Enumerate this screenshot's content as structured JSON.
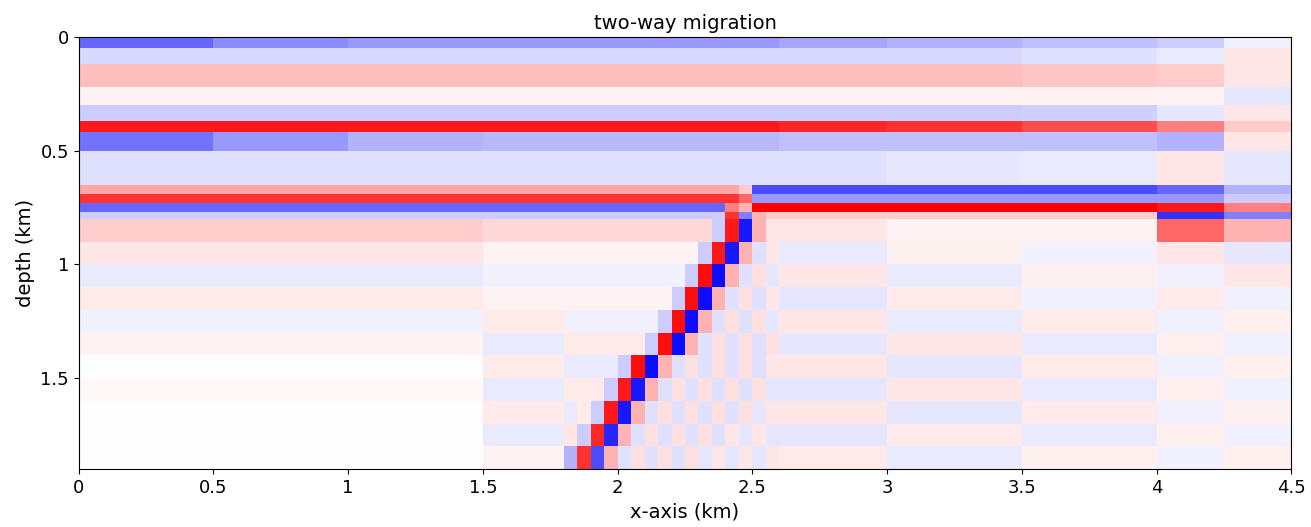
{
  "chart_data": {
    "type": "heatmap",
    "title": "two-way migration",
    "x_label": "x-axis (km)",
    "y_label": "depth (km)",
    "xlim": [
      0,
      4.5
    ],
    "ylim": [
      1.9,
      0
    ],
    "xticks": [
      0,
      0.5,
      1,
      1.5,
      2,
      2.5,
      3,
      3.5,
      4,
      4.5
    ],
    "yticks": [
      0,
      0.5,
      1,
      1.5
    ],
    "zlim": [
      -1,
      1
    ],
    "x_edges": [
      0,
      0.5,
      1.0,
      1.5,
      1.8,
      1.85,
      1.9,
      1.95,
      2.0,
      2.05,
      2.1,
      2.15,
      2.2,
      2.25,
      2.3,
      2.35,
      2.4,
      2.45,
      2.5,
      2.55,
      2.6,
      3.0,
      3.5,
      4.0,
      4.25,
      4.5
    ],
    "y_edges": [
      0,
      0.05,
      0.12,
      0.22,
      0.3,
      0.37,
      0.42,
      0.5,
      0.65,
      0.69,
      0.73,
      0.77,
      0.8,
      0.9,
      1.0,
      1.1,
      1.2,
      1.3,
      1.4,
      1.5,
      1.6,
      1.7,
      1.8,
      1.9
    ],
    "cells": [
      [
        -0.6,
        -0.45,
        -0.4,
        -0.4,
        -0.4,
        -0.4,
        -0.4,
        -0.4,
        -0.4,
        -0.4,
        -0.4,
        -0.4,
        -0.4,
        -0.4,
        -0.4,
        -0.4,
        -0.4,
        -0.4,
        -0.4,
        -0.4,
        -0.35,
        -0.3,
        -0.25,
        -0.2,
        -0.05
      ],
      [
        -0.15,
        -0.15,
        -0.15,
        -0.15,
        -0.15,
        -0.15,
        -0.15,
        -0.15,
        -0.15,
        -0.15,
        -0.15,
        -0.15,
        -0.15,
        -0.15,
        -0.15,
        -0.15,
        -0.15,
        -0.15,
        -0.15,
        -0.15,
        -0.15,
        -0.15,
        -0.12,
        -0.08,
        0.1
      ],
      [
        0.25,
        0.25,
        0.25,
        0.25,
        0.25,
        0.25,
        0.25,
        0.25,
        0.25,
        0.25,
        0.25,
        0.25,
        0.25,
        0.25,
        0.25,
        0.25,
        0.25,
        0.25,
        0.25,
        0.25,
        0.25,
        0.25,
        0.22,
        0.2,
        0.1
      ],
      [
        0.05,
        0.05,
        0.05,
        0.05,
        0.05,
        0.05,
        0.05,
        0.05,
        0.05,
        0.05,
        0.05,
        0.05,
        0.05,
        0.05,
        0.05,
        0.05,
        0.05,
        0.05,
        0.05,
        0.05,
        0.05,
        0.05,
        0.05,
        0.05,
        -0.1
      ],
      [
        -0.2,
        -0.2,
        -0.2,
        -0.2,
        -0.2,
        -0.2,
        -0.2,
        -0.2,
        -0.2,
        -0.2,
        -0.2,
        -0.2,
        -0.2,
        -0.2,
        -0.2,
        -0.2,
        -0.2,
        -0.2,
        -0.2,
        -0.2,
        -0.2,
        -0.2,
        -0.18,
        -0.1,
        0.1
      ],
      [
        0.9,
        0.9,
        0.9,
        0.9,
        0.9,
        0.9,
        0.9,
        0.9,
        0.9,
        0.9,
        0.9,
        0.9,
        0.9,
        0.9,
        0.9,
        0.9,
        0.9,
        0.9,
        0.9,
        0.9,
        0.85,
        0.8,
        0.7,
        0.5,
        0.2
      ],
      [
        -0.55,
        -0.4,
        -0.3,
        -0.28,
        -0.28,
        -0.28,
        -0.28,
        -0.28,
        -0.28,
        -0.28,
        -0.28,
        -0.28,
        -0.28,
        -0.28,
        -0.28,
        -0.28,
        -0.28,
        -0.28,
        -0.28,
        -0.28,
        -0.25,
        -0.25,
        -0.25,
        -0.3,
        0.1
      ],
      [
        -0.12,
        -0.12,
        -0.12,
        -0.12,
        -0.12,
        -0.12,
        -0.12,
        -0.12,
        -0.12,
        -0.12,
        -0.12,
        -0.12,
        -0.12,
        -0.12,
        -0.12,
        -0.12,
        -0.12,
        -0.12,
        -0.12,
        -0.12,
        -0.12,
        -0.1,
        -0.08,
        0.1,
        -0.1
      ],
      [
        0.35,
        0.35,
        0.35,
        0.35,
        0.35,
        0.35,
        0.35,
        0.35,
        0.35,
        0.35,
        0.35,
        0.35,
        0.35,
        0.35,
        0.35,
        0.35,
        0.35,
        0.2,
        -0.7,
        -0.7,
        -0.7,
        -0.7,
        -0.7,
        -0.6,
        -0.3
      ],
      [
        0.8,
        0.8,
        0.8,
        0.8,
        0.8,
        0.8,
        0.8,
        0.8,
        0.8,
        0.8,
        0.8,
        0.8,
        0.8,
        0.8,
        0.8,
        0.8,
        0.8,
        0.6,
        -0.4,
        -0.4,
        -0.4,
        -0.4,
        -0.4,
        -0.4,
        -0.2
      ],
      [
        -0.6,
        -0.6,
        -0.6,
        -0.6,
        -0.6,
        -0.6,
        -0.6,
        -0.6,
        -0.6,
        -0.6,
        -0.6,
        -0.6,
        -0.6,
        -0.6,
        -0.6,
        -0.6,
        0.5,
        0.3,
        1.0,
        1.0,
        1.0,
        1.0,
        1.0,
        0.9,
        0.5
      ],
      [
        -0.2,
        -0.2,
        -0.2,
        -0.2,
        -0.2,
        -0.2,
        -0.2,
        -0.2,
        -0.2,
        -0.2,
        -0.2,
        -0.2,
        -0.2,
        -0.2,
        -0.2,
        -0.2,
        0.8,
        -0.5,
        0.3,
        0.2,
        0.2,
        0.2,
        0.2,
        -0.8,
        -0.5
      ],
      [
        0.2,
        0.2,
        0.2,
        0.15,
        0.15,
        0.15,
        0.15,
        0.15,
        0.15,
        0.15,
        0.15,
        0.15,
        0.15,
        0.15,
        0.15,
        -0.2,
        0.9,
        -0.9,
        0.3,
        0.1,
        0.1,
        0.05,
        0.05,
        0.6,
        0.3
      ],
      [
        0.1,
        0.1,
        0.1,
        0.05,
        0.05,
        0.05,
        0.05,
        0.05,
        0.05,
        0.05,
        0.05,
        0.05,
        0.05,
        0.05,
        -0.2,
        0.9,
        -0.9,
        0.3,
        -0.12,
        0.1,
        -0.08,
        0.06,
        -0.05,
        0.1,
        -0.1
      ],
      [
        -0.08,
        -0.08,
        -0.08,
        -0.05,
        -0.05,
        -0.05,
        -0.05,
        -0.05,
        -0.05,
        -0.05,
        -0.05,
        -0.05,
        -0.05,
        -0.2,
        0.95,
        -0.95,
        0.3,
        -0.12,
        0.12,
        -0.1,
        0.1,
        -0.08,
        0.06,
        -0.06,
        0.1
      ],
      [
        0.08,
        0.08,
        0.08,
        0.05,
        0.05,
        0.05,
        0.05,
        0.05,
        0.05,
        0.05,
        0.05,
        0.05,
        -0.2,
        0.95,
        -0.95,
        0.3,
        -0.12,
        0.12,
        -0.12,
        0.1,
        -0.1,
        0.08,
        -0.06,
        0.08,
        -0.06
      ],
      [
        -0.05,
        -0.05,
        -0.05,
        0.08,
        -0.06,
        -0.06,
        -0.06,
        -0.06,
        -0.06,
        -0.06,
        -0.06,
        -0.2,
        0.95,
        -0.95,
        0.3,
        -0.12,
        0.12,
        -0.12,
        0.12,
        -0.1,
        0.1,
        -0.08,
        0.08,
        -0.06,
        0.06
      ],
      [
        0.05,
        0.05,
        0.05,
        -0.08,
        0.08,
        0.08,
        0.08,
        0.08,
        0.08,
        0.08,
        -0.2,
        0.95,
        -0.95,
        0.3,
        -0.12,
        0.12,
        -0.12,
        0.12,
        -0.12,
        0.12,
        -0.1,
        0.1,
        -0.08,
        0.06,
        -0.06
      ],
      [
        0.0,
        0.0,
        0.0,
        0.08,
        -0.08,
        -0.08,
        -0.08,
        -0.08,
        -0.2,
        0.95,
        -0.95,
        0.3,
        -0.12,
        0.12,
        -0.12,
        0.12,
        -0.12,
        0.12,
        -0.12,
        0.1,
        0.1,
        -0.1,
        0.08,
        -0.06,
        0.06
      ],
      [
        0.03,
        0.03,
        0.03,
        -0.08,
        0.08,
        0.08,
        0.08,
        -0.2,
        0.9,
        -0.9,
        0.3,
        -0.12,
        0.12,
        -0.12,
        0.12,
        -0.12,
        0.12,
        -0.12,
        0.12,
        -0.1,
        -0.1,
        0.1,
        -0.08,
        0.06,
        -0.06
      ],
      [
        0.0,
        0.0,
        0.0,
        0.08,
        -0.08,
        0.08,
        -0.2,
        0.9,
        -0.9,
        0.3,
        -0.12,
        0.12,
        -0.12,
        0.12,
        -0.12,
        0.12,
        -0.12,
        0.12,
        -0.1,
        0.1,
        0.1,
        -0.1,
        0.08,
        -0.06,
        0.06
      ],
      [
        0.0,
        0.0,
        0.0,
        -0.08,
        0.1,
        -0.2,
        0.85,
        -0.85,
        0.3,
        -0.12,
        0.12,
        -0.12,
        0.12,
        -0.12,
        0.12,
        -0.12,
        0.1,
        -0.1,
        0.1,
        -0.1,
        -0.1,
        0.08,
        -0.08,
        0.06,
        -0.06
      ],
      [
        0.0,
        0.0,
        0.0,
        0.05,
        -0.3,
        0.8,
        -0.7,
        0.3,
        -0.12,
        0.12,
        -0.12,
        0.12,
        -0.12,
        0.12,
        -0.1,
        0.1,
        -0.1,
        0.1,
        -0.1,
        0.1,
        0.08,
        -0.08,
        0.06,
        -0.06,
        0.06
      ]
    ]
  }
}
